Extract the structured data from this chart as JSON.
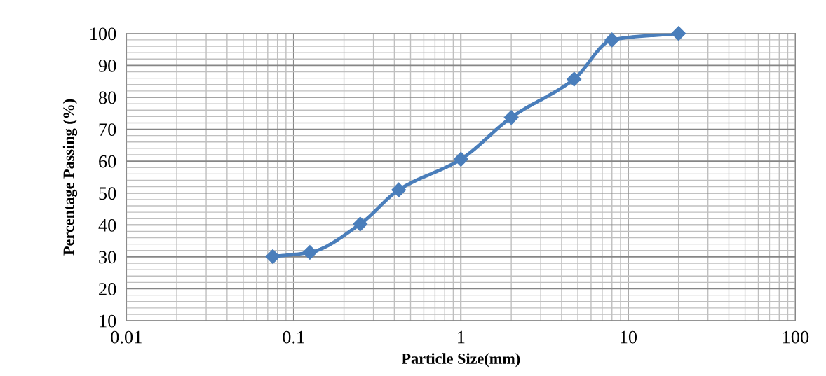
{
  "chart_data": {
    "type": "line",
    "xlabel": "Particle Size(mm)",
    "ylabel": "Percentage Passing (%)",
    "x": [
      0.075,
      0.125,
      0.25,
      0.425,
      1,
      2,
      4.75,
      8,
      20
    ],
    "series": [
      {
        "color": "#4a7ebb",
        "values": [
          30.1,
          31.4,
          40.3,
          51.0,
          60.6,
          73.7,
          85.7,
          98.0,
          100
        ]
      }
    ],
    "log": "x",
    "xlim": [
      0.01,
      100
    ],
    "xticks": [
      0.01,
      0.1,
      1,
      10,
      100
    ],
    "ylim": [
      10,
      100
    ],
    "yticks": [
      10,
      20,
      30,
      40,
      50,
      60,
      70,
      80,
      90,
      100
    ],
    "grid": true,
    "marker": "diamond",
    "line_style": "solid"
  }
}
